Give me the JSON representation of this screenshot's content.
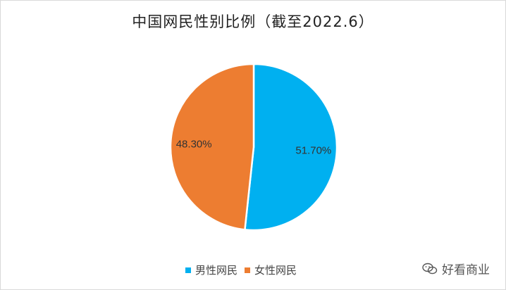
{
  "colors": {
    "male": "#00B0F0",
    "female": "#ED7D31"
  },
  "watermark": {
    "icon": "wechat-icon",
    "text": "好看商业"
  },
  "chart_data": {
    "type": "pie",
    "title": "中国网民性别比例（截至2022.6）",
    "categories": [
      "男性网民",
      "女性网民"
    ],
    "values": [
      51.7,
      48.3
    ],
    "data_labels": [
      "51.70%",
      "48.30%"
    ],
    "legend": [
      "男性网民",
      "女性网民"
    ],
    "legend_placement": "bottom",
    "start_angle_deg": 0,
    "direction": "clockwise"
  }
}
